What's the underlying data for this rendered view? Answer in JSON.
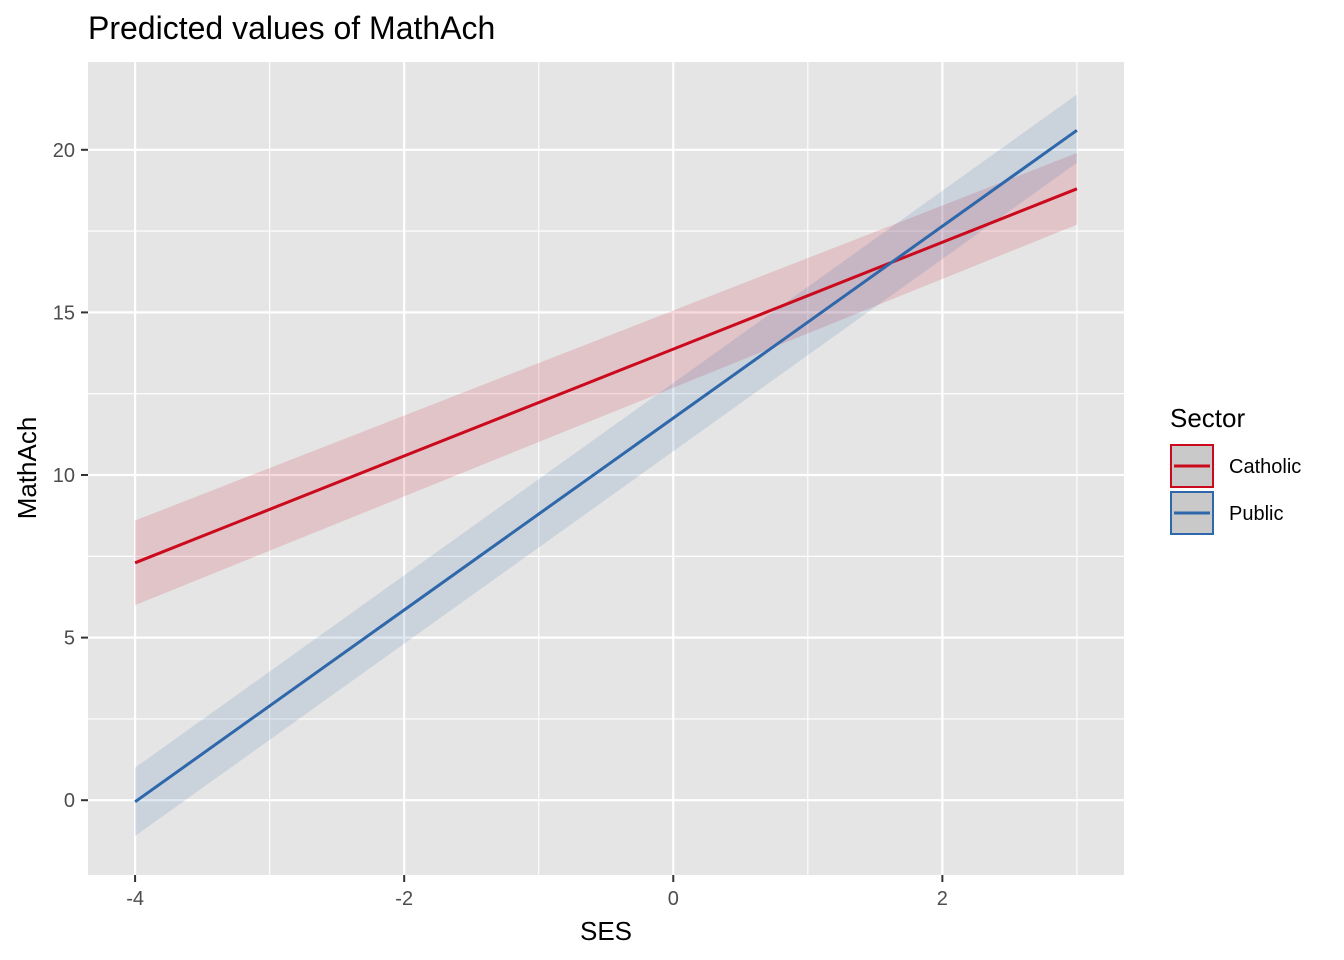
{
  "chart_data": {
    "type": "line",
    "title": "Predicted values of MathAch",
    "xlabel": "SES",
    "ylabel": "MathAch",
    "xlim": [
      -4.35,
      3.35
    ],
    "ylim": [
      -2.3,
      22.7
    ],
    "xticks": [
      -4,
      -2,
      0,
      2
    ],
    "xtick_labels": [
      "-4",
      "-2",
      "0",
      "2"
    ],
    "yticks": [
      0,
      5,
      10,
      15,
      20
    ],
    "ytick_labels": [
      "0",
      "5",
      "10",
      "15",
      "20"
    ],
    "x_minor": [
      -3,
      -1,
      1,
      3
    ],
    "y_minor": [
      2.5,
      7.5,
      12.5,
      17.5
    ],
    "grid": true,
    "legend": {
      "title": "Sector",
      "position": "right"
    },
    "series": [
      {
        "name": "Catholic",
        "color": "#cb0a1d",
        "x": [
          -4,
          3
        ],
        "y": [
          7.3,
          18.8
        ],
        "ci_low": [
          6.0,
          17.7
        ],
        "ci_high": [
          8.6,
          19.9
        ]
      },
      {
        "name": "Public",
        "color": "#2e67aa",
        "x": [
          -4,
          3
        ],
        "y": [
          -0.05,
          20.6
        ],
        "ci_low": [
          -1.1,
          19.6
        ],
        "ci_high": [
          1.0,
          21.7
        ]
      }
    ]
  },
  "colors": {
    "panel_background": "#e5e5e5",
    "grid": "#ffffff",
    "tick_text": "#4d4d4d"
  }
}
